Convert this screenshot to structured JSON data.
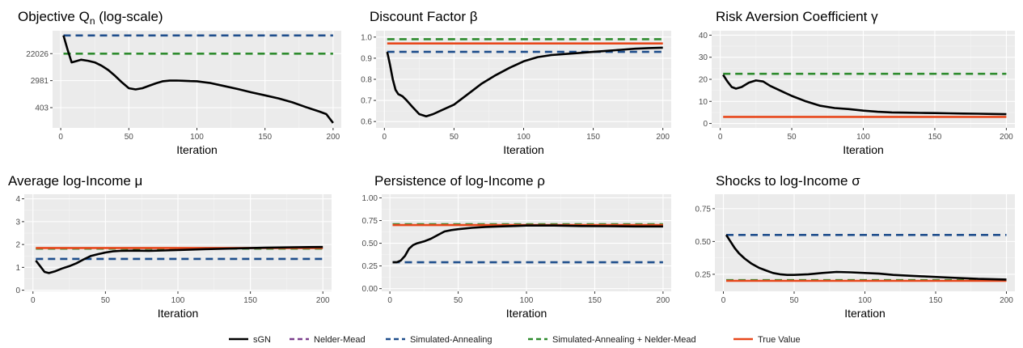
{
  "colors": {
    "panel_bg": "#ebebeb",
    "grid_major": "#ffffff",
    "sgn": "#000000",
    "nelder_mead": "#7b3f8c",
    "simulated_annealing": "#1f4e8c",
    "sa_nm": "#2e8b2e",
    "true_value": "#e8481c"
  },
  "legend": [
    {
      "key": "sgn",
      "label": "sGN",
      "dashed": false
    },
    {
      "key": "nelder_mead",
      "label": "Nelder-Mead",
      "dashed": true
    },
    {
      "key": "simulated_annealing",
      "label": "Simulated-Annealing",
      "dashed": true
    },
    {
      "key": "sa_nm",
      "label": "Simulated-Annealing + Nelder-Mead",
      "dashed": true
    },
    {
      "key": "true_value",
      "label": "True Value",
      "dashed": false
    }
  ],
  "chart_data": [
    {
      "type": "line",
      "title": "Objective Q",
      "title_sub": "n",
      "title_suffix": " (log-scale)",
      "xlabel": "Iteration",
      "ylabel": "",
      "scale": "log",
      "xlim": [
        -6,
        206
      ],
      "ylim": [
        90,
        120000
      ],
      "xticks": [
        0,
        50,
        100,
        150,
        200
      ],
      "yticks": [
        403,
        2981,
        22026
      ],
      "ytick_labels": [
        "403",
        "2981",
        "22026"
      ],
      "grid": true,
      "series": [
        {
          "key": "simulated_annealing",
          "dashed": true,
          "x": [
            2,
            200
          ],
          "y": [
            85000,
            85000
          ]
        },
        {
          "key": "sa_nm",
          "dashed": true,
          "x": [
            2,
            200
          ],
          "y": [
            22026,
            22026
          ]
        },
        {
          "key": "sgn",
          "dashed": false,
          "x": [
            2,
            5,
            8,
            11,
            15,
            20,
            25,
            30,
            35,
            40,
            45,
            50,
            55,
            60,
            65,
            70,
            75,
            80,
            85,
            90,
            95,
            100,
            110,
            120,
            130,
            140,
            150,
            160,
            170,
            180,
            190,
            195,
            200
          ],
          "y": [
            85000,
            30000,
            11500,
            12500,
            14000,
            13000,
            11500,
            9000,
            6500,
            4200,
            2600,
            1700,
            1550,
            1700,
            2050,
            2450,
            2850,
            2980,
            3000,
            2950,
            2880,
            2850,
            2500,
            2000,
            1600,
            1250,
            1000,
            800,
            600,
            420,
            300,
            250,
            130
          ]
        }
      ]
    },
    {
      "type": "line",
      "title": "Discount Factor β",
      "xlabel": "Iteration",
      "ylabel": "",
      "scale": "linear",
      "xlim": [
        -6,
        206
      ],
      "ylim": [
        0.57,
        1.03
      ],
      "xticks": [
        0,
        50,
        100,
        150,
        200
      ],
      "yticks": [
        0.6,
        0.7,
        0.8,
        0.9,
        1.0
      ],
      "ytick_labels": [
        "0.6",
        "0.7",
        "0.8",
        "0.9",
        "1.0"
      ],
      "grid": true,
      "series": [
        {
          "key": "simulated_annealing",
          "dashed": true,
          "x": [
            2,
            200
          ],
          "y": [
            0.93,
            0.93
          ]
        },
        {
          "key": "sa_nm",
          "dashed": true,
          "x": [
            2,
            200
          ],
          "y": [
            0.99,
            0.99
          ]
        },
        {
          "key": "true_value",
          "dashed": false,
          "x": [
            2,
            200
          ],
          "y": [
            0.97,
            0.97
          ]
        },
        {
          "key": "sgn",
          "dashed": false,
          "x": [
            2,
            4,
            6,
            8,
            10,
            13,
            16,
            20,
            25,
            30,
            35,
            40,
            50,
            60,
            70,
            80,
            90,
            100,
            110,
            120,
            130,
            140,
            150,
            160,
            170,
            180,
            190,
            200
          ],
          "y": [
            0.93,
            0.87,
            0.8,
            0.75,
            0.73,
            0.72,
            0.7,
            0.67,
            0.635,
            0.625,
            0.635,
            0.65,
            0.68,
            0.73,
            0.78,
            0.82,
            0.855,
            0.885,
            0.905,
            0.915,
            0.92,
            0.925,
            0.93,
            0.935,
            0.94,
            0.945,
            0.948,
            0.95
          ]
        }
      ]
    },
    {
      "type": "line",
      "title": "Risk Aversion Coefficient γ",
      "xlabel": "Iteration",
      "ylabel": "",
      "scale": "linear",
      "xlim": [
        -6,
        206
      ],
      "ylim": [
        -2,
        42
      ],
      "xticks": [
        0,
        50,
        100,
        150,
        200
      ],
      "yticks": [
        0,
        10,
        20,
        30,
        40
      ],
      "ytick_labels": [
        "0",
        "10",
        "20",
        "30",
        "40"
      ],
      "grid": true,
      "series": [
        {
          "key": "sa_nm",
          "dashed": true,
          "x": [
            2,
            200
          ],
          "y": [
            22.5,
            22.5
          ]
        },
        {
          "key": "true_value",
          "dashed": false,
          "x": [
            2,
            200
          ],
          "y": [
            3,
            3
          ]
        },
        {
          "key": "sgn",
          "dashed": false,
          "x": [
            2,
            5,
            8,
            11,
            15,
            20,
            25,
            30,
            35,
            40,
            45,
            50,
            60,
            70,
            80,
            90,
            100,
            110,
            120,
            130,
            140,
            150,
            160,
            170,
            180,
            190,
            200
          ],
          "y": [
            22,
            19,
            16.5,
            15.8,
            16.5,
            18.5,
            19.5,
            19,
            17,
            15.5,
            14,
            12.5,
            10,
            8,
            7,
            6.5,
            5.8,
            5.3,
            5,
            4.9,
            4.8,
            4.7,
            4.6,
            4.5,
            4.4,
            4.3,
            4.2
          ]
        }
      ]
    },
    {
      "type": "line",
      "title": "Average log-Income μ",
      "xlabel": "Iteration",
      "ylabel": "",
      "scale": "linear",
      "xlim": [
        -6,
        206
      ],
      "ylim": [
        -0.05,
        4.2
      ],
      "xticks": [
        0,
        50,
        100,
        150,
        200
      ],
      "yticks": [
        0,
        1,
        2,
        3,
        4
      ],
      "ytick_labels": [
        "0",
        "1",
        "2",
        "3",
        "4"
      ],
      "grid": true,
      "series": [
        {
          "key": "simulated_annealing",
          "dashed": true,
          "x": [
            2,
            200
          ],
          "y": [
            1.37,
            1.37
          ]
        },
        {
          "key": "sa_nm",
          "dashed": true,
          "x": [
            2,
            200
          ],
          "y": [
            1.82,
            1.82
          ]
        },
        {
          "key": "true_value",
          "dashed": false,
          "x": [
            2,
            200
          ],
          "y": [
            1.85,
            1.85
          ]
        },
        {
          "key": "sgn",
          "dashed": false,
          "x": [
            2,
            5,
            8,
            11,
            15,
            20,
            25,
            30,
            35,
            40,
            45,
            50,
            55,
            60,
            70,
            80,
            90,
            100,
            120,
            140,
            160,
            180,
            200
          ],
          "y": [
            1.3,
            1.05,
            0.8,
            0.75,
            0.82,
            0.95,
            1.05,
            1.18,
            1.35,
            1.5,
            1.58,
            1.65,
            1.7,
            1.72,
            1.73,
            1.72,
            1.74,
            1.76,
            1.8,
            1.83,
            1.86,
            1.88,
            1.89
          ]
        }
      ]
    },
    {
      "type": "line",
      "title": "Persistence of log-Income ρ",
      "xlabel": "Iteration",
      "ylabel": "",
      "scale": "linear",
      "xlim": [
        -6,
        206
      ],
      "ylim": [
        -0.03,
        1.04
      ],
      "xticks": [
        0,
        50,
        100,
        150,
        200
      ],
      "yticks": [
        0.0,
        0.25,
        0.5,
        0.75,
        1.0
      ],
      "ytick_labels": [
        "0.00",
        "0.25",
        "0.50",
        "0.75",
        "1.00"
      ],
      "grid": true,
      "series": [
        {
          "key": "simulated_annealing",
          "dashed": true,
          "x": [
            2,
            200
          ],
          "y": [
            0.29,
            0.29
          ]
        },
        {
          "key": "sa_nm",
          "dashed": true,
          "x": [
            2,
            200
          ],
          "y": [
            0.71,
            0.71
          ]
        },
        {
          "key": "true_value",
          "dashed": false,
          "x": [
            2,
            200
          ],
          "y": [
            0.7,
            0.7
          ]
        },
        {
          "key": "sgn",
          "dashed": false,
          "x": [
            2,
            5,
            8,
            11,
            14,
            17,
            20,
            25,
            30,
            35,
            40,
            45,
            50,
            60,
            70,
            80,
            90,
            100,
            120,
            140,
            160,
            180,
            200
          ],
          "y": [
            0.29,
            0.29,
            0.31,
            0.36,
            0.44,
            0.48,
            0.5,
            0.52,
            0.55,
            0.59,
            0.63,
            0.645,
            0.655,
            0.67,
            0.68,
            0.685,
            0.69,
            0.695,
            0.695,
            0.69,
            0.688,
            0.685,
            0.685
          ]
        }
      ]
    },
    {
      "type": "line",
      "title": "Shocks to log-Income σ",
      "xlabel": "Iteration",
      "ylabel": "",
      "scale": "linear",
      "xlim": [
        -6,
        206
      ],
      "ylim": [
        0.12,
        0.86
      ],
      "xticks": [
        0,
        50,
        100,
        150,
        200
      ],
      "yticks": [
        0.25,
        0.5,
        0.75
      ],
      "ytick_labels": [
        "0.25",
        "0.50",
        "0.75"
      ],
      "grid": true,
      "series": [
        {
          "key": "simulated_annealing",
          "dashed": true,
          "x": [
            2,
            200
          ],
          "y": [
            0.55,
            0.55
          ]
        },
        {
          "key": "sa_nm",
          "dashed": true,
          "x": [
            2,
            200
          ],
          "y": [
            0.205,
            0.205
          ]
        },
        {
          "key": "true_value",
          "dashed": false,
          "x": [
            2,
            200
          ],
          "y": [
            0.2,
            0.2
          ]
        },
        {
          "key": "sgn",
          "dashed": false,
          "x": [
            2,
            5,
            8,
            11,
            15,
            20,
            25,
            30,
            35,
            40,
            45,
            50,
            60,
            70,
            80,
            90,
            100,
            110,
            120,
            140,
            160,
            180,
            200
          ],
          "y": [
            0.55,
            0.5,
            0.45,
            0.41,
            0.37,
            0.33,
            0.3,
            0.28,
            0.26,
            0.25,
            0.245,
            0.245,
            0.25,
            0.26,
            0.268,
            0.265,
            0.26,
            0.255,
            0.245,
            0.235,
            0.225,
            0.215,
            0.21
          ]
        }
      ]
    }
  ]
}
